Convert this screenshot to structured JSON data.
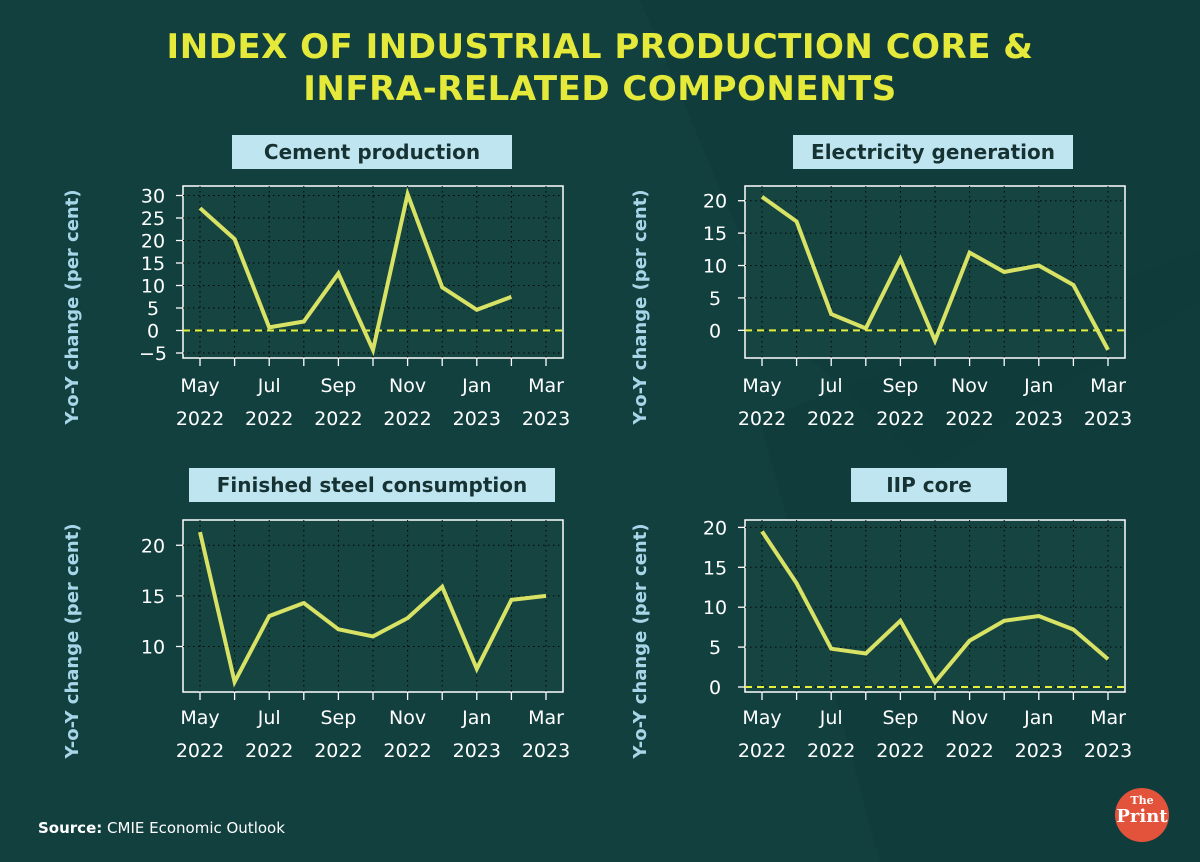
{
  "header": {
    "title_line1": "INDEX OF INDUSTRIAL PRODUCTION CORE &",
    "title_line2": "INFRA-RELATED COMPONENTS"
  },
  "source": {
    "label": "Source:",
    "text": "CMIE Economic Outlook"
  },
  "logo": {
    "top": "The",
    "bottom": "Print"
  },
  "colors": {
    "background": "#12403f",
    "plot_background": "#164440",
    "line": "#d8e265",
    "zero_line": "#e4ee3c",
    "title": "#e4e93a",
    "panel_title_bg": "#bfe6f0",
    "axis_text": "#ffffff",
    "ylabel_text": "#a6d6e8"
  },
  "chart_data": [
    {
      "type": "line",
      "title": "Cement production",
      "ylabel": "Y-o-Y change (per cent)",
      "ylim": [
        -5,
        31
      ],
      "yticks": [
        30,
        25,
        20,
        15,
        10,
        5,
        0,
        -5
      ],
      "zero_line": true,
      "xticklabels": [
        [
          "May",
          "2022"
        ],
        [
          "Jul",
          "2022"
        ],
        [
          "Sep",
          "2022"
        ],
        [
          "Nov",
          "2022"
        ],
        [
          "Jan",
          "2023"
        ],
        [
          "Mar",
          "2023"
        ]
      ],
      "x": [
        "May 2022",
        "Jun 2022",
        "Jul 2022",
        "Aug 2022",
        "Sep 2022",
        "Oct 2022",
        "Nov 2022",
        "Dec 2022",
        "Jan 2023",
        "Feb 2023",
        "Mar 2023"
      ],
      "values": [
        27.2,
        20.3,
        0.7,
        2.0,
        12.7,
        -4.3,
        30.3,
        9.6,
        4.6,
        7.5,
        null
      ]
    },
    {
      "type": "line",
      "title": "Electricity generation",
      "ylabel": "Y-o-Y change (per cent)",
      "ylim": [
        -3.5,
        21.5
      ],
      "yticks": [
        20,
        15,
        10,
        5,
        0
      ],
      "zero_line": true,
      "xticklabels": [
        [
          "May",
          "2022"
        ],
        [
          "Jul",
          "2022"
        ],
        [
          "Sep",
          "2022"
        ],
        [
          "Nov",
          "2022"
        ],
        [
          "Jan",
          "2023"
        ],
        [
          "Mar",
          "2023"
        ]
      ],
      "x": [
        "May 2022",
        "Jun 2022",
        "Jul 2022",
        "Aug 2022",
        "Sep 2022",
        "Oct 2022",
        "Nov 2022",
        "Dec 2022",
        "Jan 2023",
        "Feb 2023",
        "Mar 2023"
      ],
      "values": [
        20.6,
        16.8,
        2.5,
        0.3,
        11.0,
        -1.6,
        12.0,
        9.0,
        10.0,
        7.0,
        -3.0
      ]
    },
    {
      "type": "line",
      "title": "Finished steel consumption",
      "ylabel": "Y-o-Y change (per cent)",
      "ylim": [
        6,
        22
      ],
      "yticks": [
        20,
        15,
        10
      ],
      "zero_line": false,
      "xticklabels": [
        [
          "May",
          "2022"
        ],
        [
          "Jul",
          "2022"
        ],
        [
          "Sep",
          "2022"
        ],
        [
          "Nov",
          "2022"
        ],
        [
          "Jan",
          "2023"
        ],
        [
          "Mar",
          "2023"
        ]
      ],
      "x": [
        "May 2022",
        "Jun 2022",
        "Jul 2022",
        "Aug 2022",
        "Sep 2022",
        "Oct 2022",
        "Nov 2022",
        "Dec 2022",
        "Jan 2023",
        "Feb 2023",
        "Mar 2023"
      ],
      "values": [
        21.3,
        6.5,
        13.0,
        14.3,
        11.7,
        11.0,
        12.8,
        15.9,
        7.8,
        14.6,
        15.0
      ]
    },
    {
      "type": "line",
      "title": "IIP core",
      "ylabel": "Y-o-Y change (per cent)",
      "ylim": [
        0,
        20.3
      ],
      "yticks": [
        20,
        15,
        10,
        5,
        0
      ],
      "zero_line": true,
      "xticklabels": [
        [
          "May",
          "2022"
        ],
        [
          "Jul",
          "2022"
        ],
        [
          "Sep",
          "2022"
        ],
        [
          "Nov",
          "2022"
        ],
        [
          "Jan",
          "2023"
        ],
        [
          "Mar",
          "2023"
        ]
      ],
      "x": [
        "May 2022",
        "Jun 2022",
        "Jul 2022",
        "Aug 2022",
        "Sep 2022",
        "Oct 2022",
        "Nov 2022",
        "Dec 2022",
        "Jan 2023",
        "Feb 2023",
        "Mar 2023"
      ],
      "values": [
        19.5,
        13.0,
        4.8,
        4.2,
        8.3,
        0.6,
        5.8,
        8.3,
        8.9,
        7.2,
        3.5
      ]
    }
  ]
}
